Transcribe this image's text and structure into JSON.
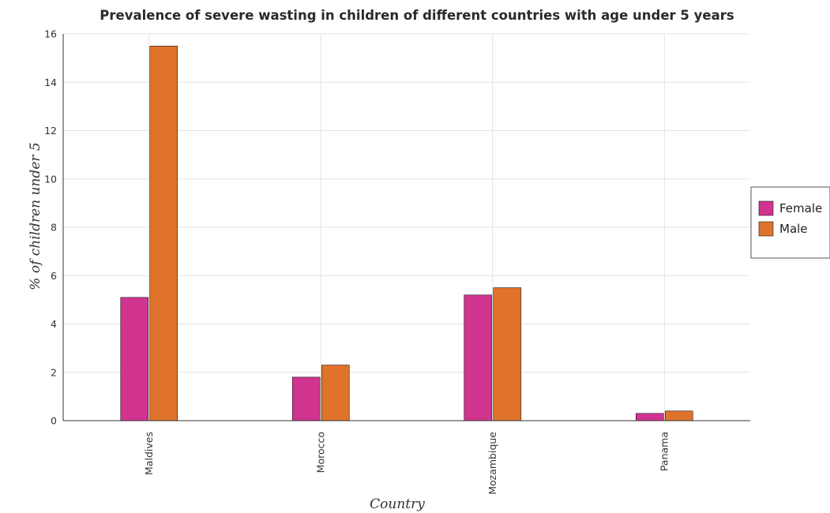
{
  "chart_data": {
    "type": "bar",
    "title": "Prevalence of severe wasting in children of different countries with age under 5 years",
    "xlabel": "Country",
    "ylabel": "% of children under 5",
    "categories": [
      "Maldives",
      "Morocco",
      "Mozambique",
      "Panama"
    ],
    "series": [
      {
        "name": "Female",
        "values": [
          5.1,
          1.8,
          5.2,
          0.3
        ],
        "color": "#d1348f"
      },
      {
        "name": "Male",
        "values": [
          15.5,
          2.3,
          5.5,
          0.4
        ],
        "color": "#e0732b"
      }
    ],
    "ylim": [
      0,
      16
    ],
    "yticks": [
      0,
      2,
      4,
      6,
      8,
      10,
      12,
      14,
      16
    ],
    "grid": true,
    "legend_position": "right"
  }
}
